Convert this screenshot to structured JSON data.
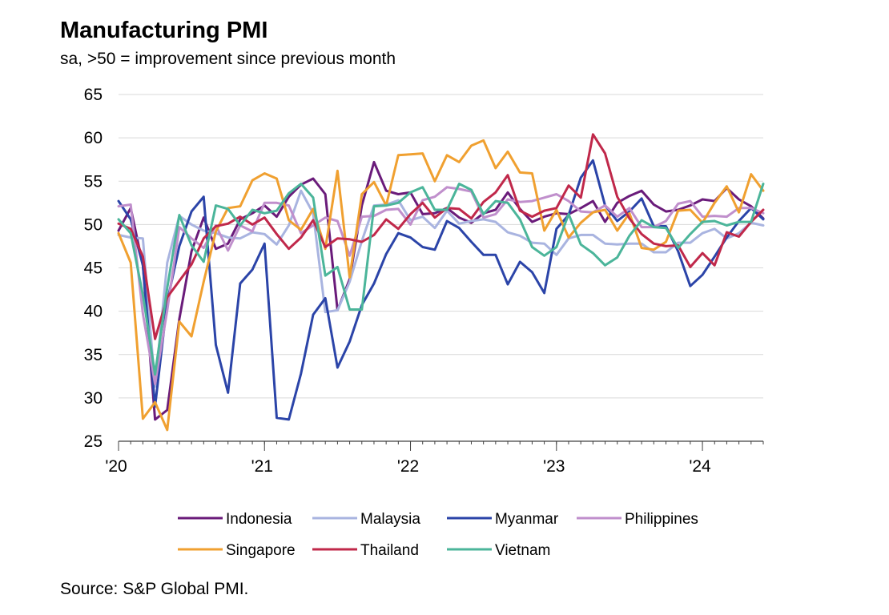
{
  "title": "Manufacturing PMI",
  "subtitle": "sa, >50 = improvement since previous month",
  "source": "Source: S&P Global PMI.",
  "chart_data": {
    "type": "line",
    "title": "Manufacturing PMI",
    "subtitle": "sa, >50 = improvement since previous month",
    "ylim": [
      25,
      65
    ],
    "yticks": [
      25,
      30,
      35,
      40,
      45,
      50,
      55,
      60,
      65
    ],
    "x_start": "2020-01",
    "x_end": "2024-06",
    "xticks": [
      {
        "label": "'20",
        "month": "2020-01"
      },
      {
        "label": "'21",
        "month": "2021-01"
      },
      {
        "label": "'22",
        "month": "2022-01"
      },
      {
        "label": "'23",
        "month": "2023-01"
      },
      {
        "label": "'24",
        "month": "2024-01"
      }
    ],
    "grid": "horizontal",
    "legend_position": "bottom",
    "series": [
      {
        "name": "Indonesia",
        "color": "#6a1b7a",
        "values": [
          49.3,
          51.9,
          45.3,
          27.5,
          28.6,
          39.1,
          46.9,
          50.8,
          47.2,
          47.8,
          50.6,
          51.3,
          52.2,
          50.9,
          53.2,
          54.6,
          55.3,
          53.5,
          40.1,
          43.7,
          52.2,
          57.2,
          53.9,
          53.5,
          53.7,
          51.2,
          51.3,
          51.9,
          50.8,
          50.2,
          51.3,
          51.7,
          53.7,
          51.8,
          50.3,
          50.9,
          51.3,
          51.2,
          51.9,
          52.7,
          50.3,
          52.5,
          53.3,
          53.9,
          52.3,
          51.5,
          51.7,
          52.2,
          52.9,
          52.7,
          54.2,
          52.9,
          52.1,
          50.7
        ]
      },
      {
        "name": "Malaysia",
        "color": "#a9b4e0",
        "values": [
          48.8,
          48.5,
          48.4,
          31.3,
          45.6,
          51.0,
          50.0,
          49.3,
          49.0,
          48.5,
          48.4,
          49.1,
          48.9,
          47.7,
          49.9,
          53.9,
          51.3,
          39.9,
          40.1,
          43.4,
          48.1,
          52.2,
          52.3,
          52.8,
          50.5,
          50.9,
          49.6,
          51.6,
          50.1,
          50.4,
          50.6,
          50.3,
          49.1,
          48.7,
          47.9,
          47.8,
          46.5,
          48.4,
          48.8,
          48.8,
          47.8,
          47.7,
          47.8,
          47.8,
          46.8,
          46.8,
          47.9,
          47.9,
          49.0,
          49.5,
          48.4,
          49.0,
          50.2,
          49.9
        ]
      },
      {
        "name": "Myanmar",
        "color": "#2b44a8",
        "values": [
          52.7,
          50.6,
          45.3,
          29.0,
          41.1,
          47.5,
          51.5,
          53.2,
          36.1,
          30.6,
          43.2,
          44.8,
          47.8,
          27.7,
          27.5,
          32.8,
          39.6,
          41.5,
          33.5,
          36.5,
          40.7,
          43.2,
          46.6,
          49.0,
          48.5,
          47.4,
          47.1,
          50.4,
          49.6,
          48.0,
          46.5,
          46.5,
          43.1,
          45.7,
          44.5,
          42.1,
          49.5,
          51.1,
          55.4,
          57.4,
          52.2,
          50.4,
          51.5,
          53.0,
          49.8,
          49.8,
          46.9,
          42.9,
          44.2,
          46.3,
          48.5,
          50.4,
          51.9,
          50.6
        ]
      },
      {
        "name": "Philippines",
        "color": "#c08fcc",
        "values": [
          52.1,
          52.3,
          39.7,
          31.6,
          40.1,
          49.7,
          48.4,
          47.3,
          49.9,
          47.0,
          49.9,
          49.2,
          52.5,
          52.5,
          52.2,
          49.0,
          49.9,
          50.8,
          50.4,
          46.4,
          50.9,
          51.0,
          51.7,
          51.8,
          50.0,
          52.8,
          53.2,
          54.3,
          54.1,
          53.8,
          50.8,
          51.2,
          52.9,
          52.6,
          52.7,
          53.1,
          53.5,
          52.7,
          51.5,
          51.4,
          52.2,
          50.9,
          51.9,
          49.7,
          49.7,
          50.4,
          52.4,
          52.7,
          50.9,
          51.0,
          50.9,
          51.9,
          51.9,
          51.3
        ]
      },
      {
        "name": "Singapore",
        "color": "#f0a030",
        "values": [
          49.0,
          45.6,
          27.6,
          29.5,
          26.3,
          38.8,
          37.1,
          43.4,
          49.2,
          51.9,
          52.1,
          55.1,
          55.9,
          55.3,
          50.5,
          49.4,
          51.8,
          47.2,
          56.2,
          43.9,
          53.5,
          54.9,
          52.2,
          58.0,
          58.1,
          58.2,
          55.0,
          58.0,
          57.2,
          59.1,
          59.7,
          56.5,
          58.4,
          56.0,
          55.9,
          49.3,
          51.7,
          48.5,
          50.2,
          51.4,
          51.7,
          49.3,
          51.3,
          47.3,
          47.1,
          48.0,
          51.6,
          51.7,
          50.2,
          52.5,
          54.4,
          51.4,
          55.8,
          53.9
        ]
      },
      {
        "name": "Thailand",
        "color": "#c0284a",
        "values": [
          50.1,
          49.5,
          46.3,
          36.8,
          41.6,
          43.5,
          45.4,
          48.4,
          49.8,
          50.1,
          50.9,
          50.0,
          50.8,
          48.9,
          47.2,
          48.5,
          50.5,
          47.4,
          48.4,
          48.3,
          48.0,
          48.8,
          50.6,
          49.5,
          51.2,
          52.5,
          50.8,
          51.9,
          51.8,
          50.7,
          52.6,
          53.7,
          55.7,
          51.6,
          50.9,
          51.6,
          51.9,
          54.5,
          53.1,
          60.4,
          58.2,
          53.2,
          50.7,
          48.9,
          47.8,
          47.5,
          47.6,
          45.1,
          46.7,
          45.3,
          49.1,
          48.6,
          50.3,
          51.7
        ]
      },
      {
        "name": "Vietnam",
        "color": "#4bb59a",
        "values": [
          50.6,
          49.0,
          41.9,
          32.7,
          42.7,
          51.1,
          47.6,
          45.7,
          52.2,
          51.8,
          49.9,
          51.7,
          51.3,
          51.6,
          53.6,
          54.7,
          53.1,
          44.1,
          45.1,
          40.2,
          40.2,
          52.1,
          52.2,
          52.5,
          53.7,
          54.3,
          51.7,
          51.7,
          54.7,
          54.0,
          51.2,
          52.7,
          52.5,
          50.6,
          47.4,
          46.4,
          47.4,
          51.2,
          47.7,
          46.7,
          45.3,
          46.2,
          48.7,
          50.5,
          49.7,
          49.6,
          47.3,
          48.9,
          50.3,
          50.4,
          49.9,
          50.3,
          50.3,
          54.7
        ]
      }
    ]
  }
}
